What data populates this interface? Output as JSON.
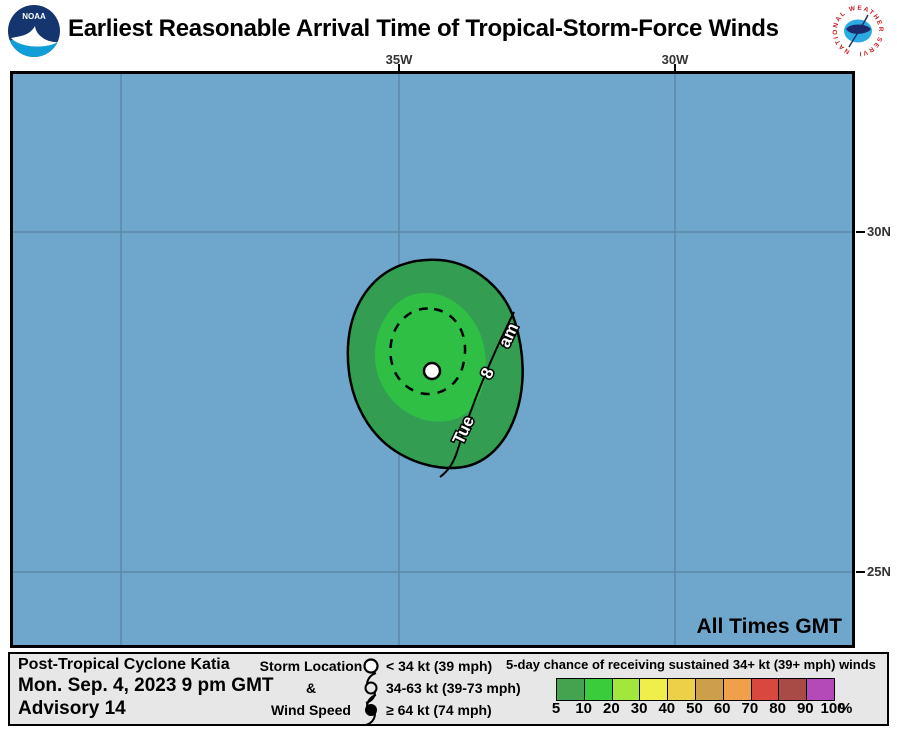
{
  "header": {
    "title": "Earliest Reasonable Arrival Time of Tropical-Storm-Force Winds",
    "noaa_logo_text": "NOAA",
    "nws_logo_text": "NATIONAL WEATHER SERVICE"
  },
  "map": {
    "x_axis_labels": [
      {
        "label": "35W"
      },
      {
        "label": "30W"
      }
    ],
    "y_axis_labels": [
      {
        "label": "30N"
      },
      {
        "label": "25N"
      }
    ],
    "all_times_note": "All Times GMT",
    "arrival_contour": {
      "day": "Tue",
      "hour": "8",
      "meridiem": "am"
    },
    "colors": {
      "ocean": "#6fa7cc",
      "grid": "#5b87a6",
      "wind_area_outer": "#339e52",
      "wind_area_inner": "#2ebf44",
      "storm_dot": "#ffffff"
    }
  },
  "footer": {
    "storm_name": "Post-Tropical Cyclone Katia",
    "issued": "Mon. Sep. 4, 2023  9 pm GMT",
    "advisory": "Advisory 14",
    "location_legend": {
      "line1": "Storm Location",
      "line2": "&",
      "line3": "Wind Speed",
      "items": [
        {
          "icon": "circle-open-icon",
          "label": "< 34 kt (39 mph)"
        },
        {
          "icon": "tropical-storm-icon",
          "label": "34-63 kt (39-73 mph)"
        },
        {
          "icon": "hurricane-icon",
          "label": "≥ 64 kt (74 mph)"
        }
      ]
    },
    "colorbar": {
      "title": "5-day chance of receiving sustained 34+ kt (39+ mph) winds",
      "tick_labels": [
        "5",
        "10",
        "20",
        "30",
        "40",
        "50",
        "60",
        "70",
        "80",
        "90",
        "100"
      ],
      "unit": "%",
      "colors": [
        "#44a34f",
        "#3bcc3b",
        "#a2e83c",
        "#f0ee4a",
        "#eecf48",
        "#cd9f4a",
        "#f0a04a",
        "#d8483f",
        "#a84a45",
        "#b44ab8"
      ]
    }
  }
}
